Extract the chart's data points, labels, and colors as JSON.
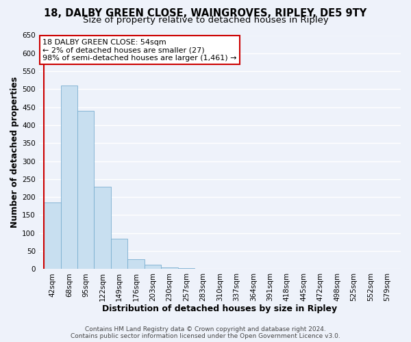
{
  "title": "18, DALBY GREEN CLOSE, WAINGROVES, RIPLEY, DE5 9TY",
  "subtitle": "Size of property relative to detached houses in Ripley",
  "xlabel": "Distribution of detached houses by size in Ripley",
  "ylabel": "Number of detached properties",
  "categories": [
    "42sqm",
    "68sqm",
    "95sqm",
    "122sqm",
    "149sqm",
    "176sqm",
    "203sqm",
    "230sqm",
    "257sqm",
    "283sqm",
    "310sqm",
    "337sqm",
    "364sqm",
    "391sqm",
    "418sqm",
    "445sqm",
    "472sqm",
    "498sqm",
    "525sqm",
    "552sqm",
    "579sqm"
  ],
  "values": [
    185,
    510,
    440,
    228,
    85,
    28,
    13,
    4,
    2,
    1,
    0,
    0,
    1,
    0,
    0,
    1,
    0,
    0,
    0,
    0,
    1
  ],
  "bar_color": "#c8dff0",
  "bar_edge_color": "#7aaed0",
  "highlight_color": "#cc0000",
  "ylim": [
    0,
    650
  ],
  "yticks": [
    0,
    50,
    100,
    150,
    200,
    250,
    300,
    350,
    400,
    450,
    500,
    550,
    600,
    650
  ],
  "annotation_title": "18 DALBY GREEN CLOSE: 54sqm",
  "annotation_line1": "← 2% of detached houses are smaller (27)",
  "annotation_line2": "98% of semi-detached houses are larger (1,461) →",
  "footer1": "Contains HM Land Registry data © Crown copyright and database right 2024.",
  "footer2": "Contains public sector information licensed under the Open Government Licence v3.0.",
  "background_color": "#eef2fa",
  "grid_color": "#ffffff",
  "title_fontsize": 10.5,
  "subtitle_fontsize": 9.5,
  "axis_label_fontsize": 9,
  "tick_fontsize": 7.5,
  "annotation_fontsize": 8,
  "footer_fontsize": 6.5
}
